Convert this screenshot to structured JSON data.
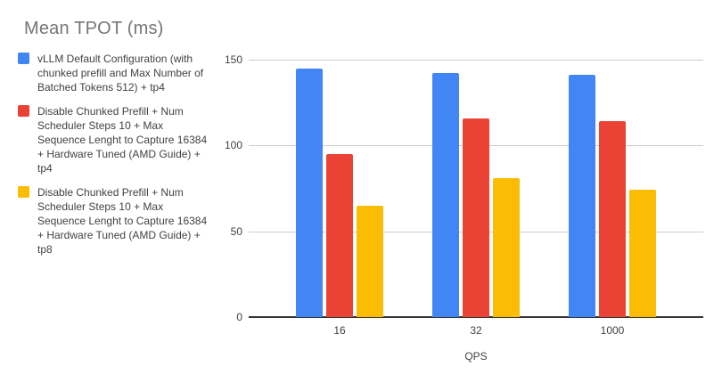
{
  "colors": {
    "series_blue": "#4285F4",
    "series_red": "#EA4335",
    "series_yellow": "#FBBC04",
    "gridline": "#CCCCCC",
    "axis": "#333333",
    "title_text": "#757575",
    "body_text": "#424242",
    "background": "#FFFFFF"
  },
  "chart_data": {
    "type": "bar",
    "title": "Mean TPOT (ms)",
    "xlabel": "QPS",
    "ylabel": "",
    "categories": [
      "16",
      "32",
      "1000"
    ],
    "series": [
      {
        "name": "vLLM Default Configuration (with chunked prefill and Max Number of Batched Tokens 512) + tp4",
        "color": "#4285F4",
        "values": [
          145,
          142,
          141
        ]
      },
      {
        "name": "Disable Chunked Prefill + Num Scheduler Steps 10 + Max Sequence Lenght to Capture 16384 + Hardware Tuned (AMD Guide) + tp4",
        "color": "#EA4335",
        "values": [
          95,
          116,
          114
        ]
      },
      {
        "name": "Disable Chunked Prefill + Num Scheduler Steps 10 + Max Sequence Lenght to Capture 16384 + Hardware Tuned (AMD Guide) + tp8",
        "color": "#FBBC04",
        "values": [
          65,
          81,
          74
        ]
      }
    ],
    "ylim": [
      0,
      150
    ],
    "yticks": [
      0,
      50,
      100,
      150
    ],
    "grid": true,
    "legend_position": "left"
  }
}
